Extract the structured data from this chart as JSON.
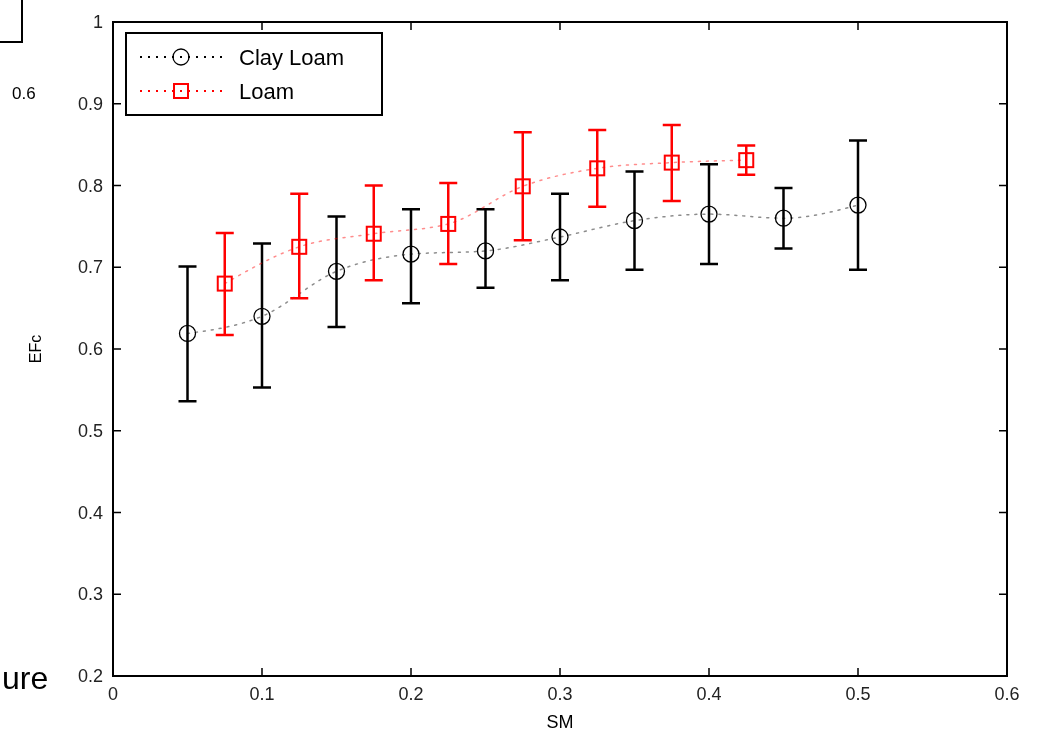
{
  "chart_data": {
    "type": "line",
    "xlabel": "SM",
    "ylabel": "EFc",
    "xlim": [
      0,
      0.6
    ],
    "xticks": [
      0,
      0.1,
      0.2,
      0.3,
      0.4,
      0.5,
      0.6
    ],
    "ylim": [
      0.2,
      1
    ],
    "yticks": [
      0.2,
      0.3,
      0.4,
      0.5,
      0.6,
      0.7,
      0.8,
      0.9,
      1
    ],
    "grid": false,
    "legend": "top left",
    "line_style": "dotted",
    "annotations": [
      "0.6",
      "ure"
    ],
    "series": [
      {
        "name": "Clay Loam",
        "color": "#000000",
        "marker": "circle",
        "x": [
          0.05,
          0.1,
          0.15,
          0.2,
          0.25,
          0.3,
          0.35,
          0.4,
          0.45,
          0.5
        ],
        "values": [
          0.619,
          0.64,
          0.695,
          0.716,
          0.72,
          0.737,
          0.757,
          0.765,
          0.76,
          0.776
        ],
        "errors": [
          [
            0.536,
            0.701
          ],
          [
            0.553,
            0.729
          ],
          [
            0.627,
            0.762
          ],
          [
            0.656,
            0.771
          ],
          [
            0.675,
            0.771
          ],
          [
            0.684,
            0.79
          ],
          [
            0.697,
            0.817
          ],
          [
            0.704,
            0.826
          ],
          [
            0.723,
            0.797
          ],
          [
            0.697,
            0.855
          ]
        ]
      },
      {
        "name": "Loam",
        "color": "#ff0000",
        "marker": "square",
        "x": [
          0.075,
          0.125,
          0.175,
          0.225,
          0.275,
          0.325,
          0.375,
          0.425
        ],
        "values": [
          0.68,
          0.725,
          0.741,
          0.753,
          0.799,
          0.821,
          0.828,
          0.831
        ],
        "errors": [
          [
            0.617,
            0.742
          ],
          [
            0.662,
            0.79
          ],
          [
            0.684,
            0.8
          ],
          [
            0.704,
            0.803
          ],
          [
            0.733,
            0.865
          ],
          [
            0.774,
            0.868
          ],
          [
            0.781,
            0.874
          ],
          [
            0.813,
            0.849
          ]
        ]
      }
    ]
  }
}
